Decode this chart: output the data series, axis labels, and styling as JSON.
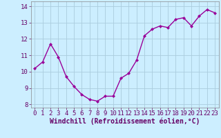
{
  "x": [
    0,
    1,
    2,
    3,
    4,
    5,
    6,
    7,
    8,
    9,
    10,
    11,
    12,
    13,
    14,
    15,
    16,
    17,
    18,
    19,
    20,
    21,
    22,
    23
  ],
  "y": [
    10.2,
    10.6,
    11.7,
    10.9,
    9.7,
    9.1,
    8.6,
    8.3,
    8.2,
    8.5,
    8.5,
    9.6,
    9.9,
    10.7,
    12.2,
    12.6,
    12.8,
    12.7,
    13.2,
    13.3,
    12.8,
    13.4,
    13.8,
    13.6
  ],
  "line_color": "#990099",
  "marker": "D",
  "marker_size": 2,
  "background_color": "#cceeff",
  "grid_color": "#aaccdd",
  "xlabel": "Windchill (Refroidissement éolien,°C)",
  "xlabel_fontsize": 7,
  "yticks": [
    8,
    9,
    10,
    11,
    12,
    13,
    14
  ],
  "xticks": [
    0,
    1,
    2,
    3,
    4,
    5,
    6,
    7,
    8,
    9,
    10,
    11,
    12,
    13,
    14,
    15,
    16,
    17,
    18,
    19,
    20,
    21,
    22,
    23
  ],
  "ylim": [
    7.8,
    14.3
  ],
  "xlim": [
    -0.5,
    23.5
  ],
  "tick_fontsize": 6.5,
  "linewidth": 1.0,
  "text_color": "#660066"
}
